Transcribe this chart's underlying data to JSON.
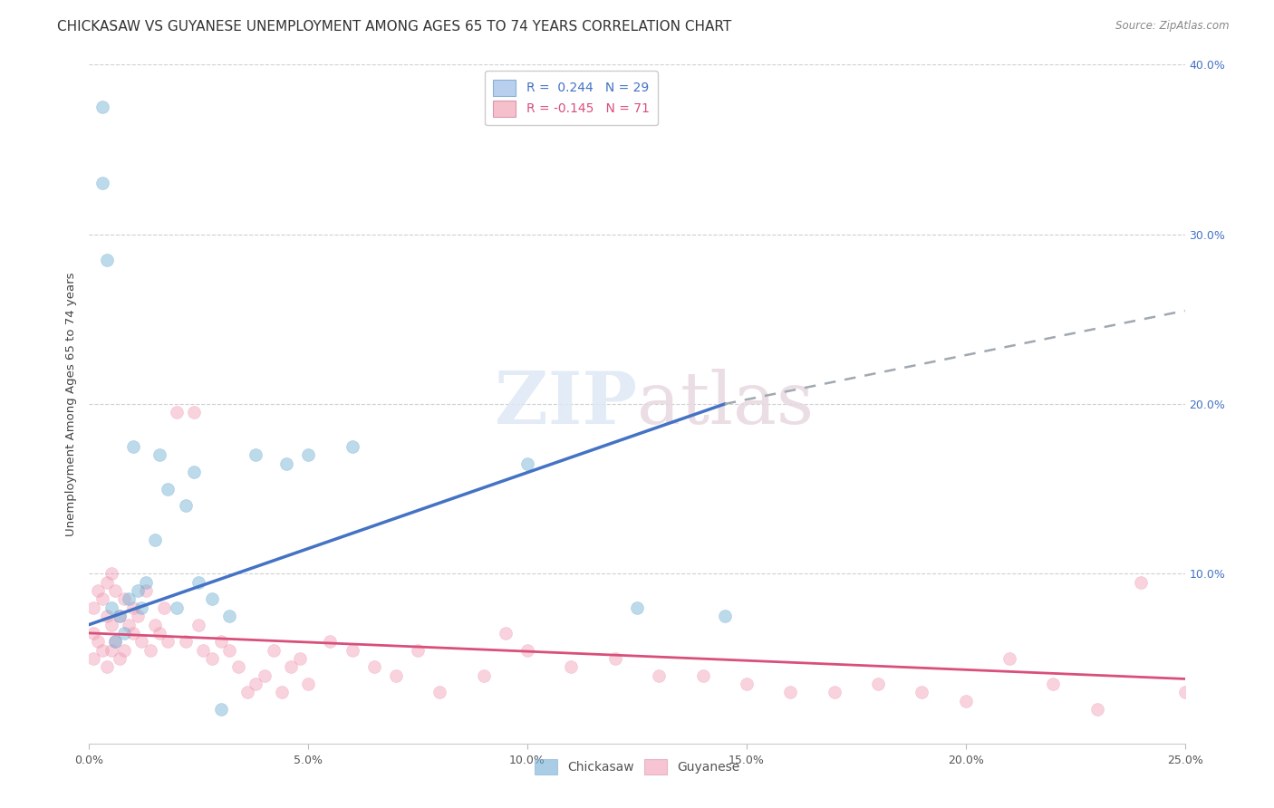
{
  "title": "CHICKASAW VS GUYANESE UNEMPLOYMENT AMONG AGES 65 TO 74 YEARS CORRELATION CHART",
  "source_text": "Source: ZipAtlas.com",
  "ylabel": "Unemployment Among Ages 65 to 74 years",
  "xlim": [
    0.0,
    0.25
  ],
  "ylim": [
    0.0,
    0.4
  ],
  "xticks": [
    0.0,
    0.05,
    0.1,
    0.15,
    0.2,
    0.25
  ],
  "yticks": [
    0.0,
    0.1,
    0.2,
    0.3,
    0.4
  ],
  "xtick_labels": [
    "0.0%",
    "5.0%",
    "10.0%",
    "15.0%",
    "20.0%",
    "25.0%"
  ],
  "ytick_labels_right": [
    "",
    "10.0%",
    "20.0%",
    "30.0%",
    "40.0%"
  ],
  "legend_entries": [
    {
      "label": "R =  0.244   N = 29",
      "facecolor": "#b8d0ed",
      "text_color": "#4472c4"
    },
    {
      "label": "R = -0.145   N = 71",
      "facecolor": "#f5c0cc",
      "text_color": "#d94f7a"
    }
  ],
  "chickasaw_color": "#6eadd4",
  "guyanese_color": "#f09db5",
  "trendline_blue": "#4472c4",
  "trendline_pink": "#d94f7a",
  "trendline_dash_color": "#a0a8b0",
  "watermark_zip": "ZIP",
  "watermark_atlas": "atlas",
  "background_color": "#ffffff",
  "grid_color": "#d0d0d0",
  "title_fontsize": 11,
  "axis_label_fontsize": 9.5,
  "tick_fontsize": 9,
  "legend_fontsize": 10,
  "marker_size": 100,
  "marker_alpha": 0.45,
  "chickasaw_x": [
    0.003,
    0.003,
    0.004,
    0.005,
    0.006,
    0.007,
    0.008,
    0.009,
    0.01,
    0.011,
    0.012,
    0.013,
    0.015,
    0.016,
    0.018,
    0.02,
    0.022,
    0.024,
    0.025,
    0.028,
    0.03,
    0.032,
    0.038,
    0.045,
    0.05,
    0.06,
    0.1,
    0.125,
    0.145
  ],
  "chickasaw_y": [
    0.375,
    0.33,
    0.285,
    0.08,
    0.06,
    0.075,
    0.065,
    0.085,
    0.175,
    0.09,
    0.08,
    0.095,
    0.12,
    0.17,
    0.15,
    0.08,
    0.14,
    0.16,
    0.095,
    0.085,
    0.02,
    0.075,
    0.17,
    0.165,
    0.17,
    0.175,
    0.165,
    0.08,
    0.075
  ],
  "guyanese_x": [
    0.001,
    0.001,
    0.001,
    0.002,
    0.002,
    0.003,
    0.003,
    0.004,
    0.004,
    0.004,
    0.005,
    0.005,
    0.005,
    0.006,
    0.006,
    0.007,
    0.007,
    0.008,
    0.008,
    0.009,
    0.01,
    0.01,
    0.011,
    0.012,
    0.013,
    0.014,
    0.015,
    0.016,
    0.017,
    0.018,
    0.02,
    0.022,
    0.024,
    0.025,
    0.026,
    0.028,
    0.03,
    0.032,
    0.034,
    0.036,
    0.038,
    0.04,
    0.042,
    0.044,
    0.046,
    0.048,
    0.05,
    0.055,
    0.06,
    0.065,
    0.07,
    0.075,
    0.08,
    0.09,
    0.095,
    0.1,
    0.11,
    0.12,
    0.13,
    0.14,
    0.15,
    0.16,
    0.17,
    0.18,
    0.19,
    0.2,
    0.21,
    0.22,
    0.23,
    0.24,
    0.25
  ],
  "guyanese_y": [
    0.08,
    0.065,
    0.05,
    0.09,
    0.06,
    0.085,
    0.055,
    0.095,
    0.075,
    0.045,
    0.1,
    0.07,
    0.055,
    0.09,
    0.06,
    0.075,
    0.05,
    0.085,
    0.055,
    0.07,
    0.065,
    0.08,
    0.075,
    0.06,
    0.09,
    0.055,
    0.07,
    0.065,
    0.08,
    0.06,
    0.195,
    0.06,
    0.195,
    0.07,
    0.055,
    0.05,
    0.06,
    0.055,
    0.045,
    0.03,
    0.035,
    0.04,
    0.055,
    0.03,
    0.045,
    0.05,
    0.035,
    0.06,
    0.055,
    0.045,
    0.04,
    0.055,
    0.03,
    0.04,
    0.065,
    0.055,
    0.045,
    0.05,
    0.04,
    0.04,
    0.035,
    0.03,
    0.03,
    0.035,
    0.03,
    0.025,
    0.05,
    0.035,
    0.02,
    0.095,
    0.03
  ],
  "blue_trend_x0": 0.0,
  "blue_trend_y0": 0.07,
  "blue_trend_x1": 0.145,
  "blue_trend_y1": 0.2,
  "blue_trend_x2": 0.25,
  "blue_trend_y2": 0.255,
  "pink_trend_x0": 0.0,
  "pink_trend_y0": 0.065,
  "pink_trend_x1": 0.25,
  "pink_trend_y1": 0.038
}
